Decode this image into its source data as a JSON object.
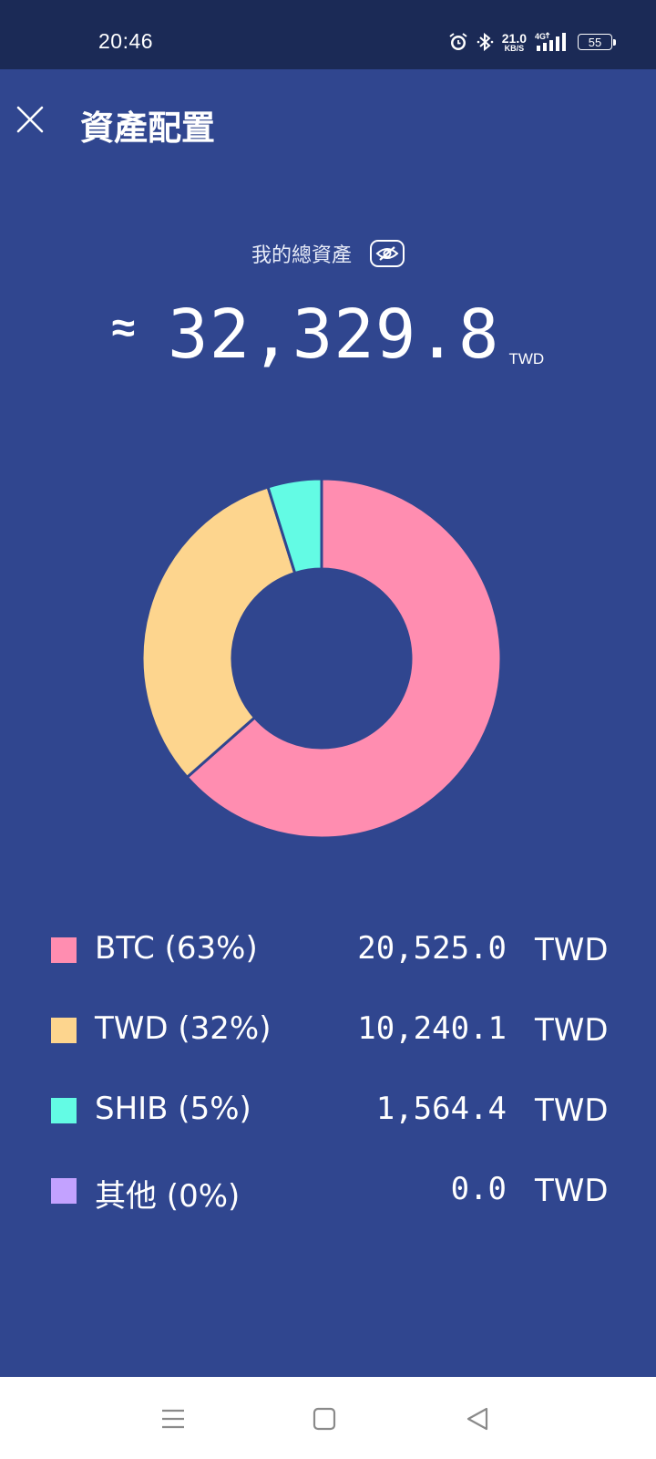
{
  "status_bar": {
    "time": "20:46",
    "net_speed_value": "21.0",
    "net_speed_unit": "KB/S",
    "network": "4G",
    "battery": "55",
    "icons": [
      "alarm-icon",
      "bluetooth-icon",
      "signal-icon",
      "battery-icon"
    ]
  },
  "header": {
    "title": "資產配置",
    "close_icon": "close-icon"
  },
  "summary": {
    "label": "我的總資產",
    "approx_symbol": "≈",
    "total_value": "32,329.8",
    "unit": "TWD",
    "visibility_icon": "eye-off-icon"
  },
  "chart_data": {
    "type": "pie",
    "style": "donut",
    "categories": [
      "BTC",
      "TWD",
      "SHIB",
      "其他"
    ],
    "values": [
      20525.0,
      10240.1,
      1564.4,
      0.0
    ],
    "percentages": [
      63,
      32,
      5,
      0
    ],
    "colors": [
      "#ff8db0",
      "#fdd58e",
      "#63fbe4",
      "#c3a2ff"
    ]
  },
  "legend": [
    {
      "label": "BTC (63%)",
      "value": "20,525.0",
      "unit": "TWD",
      "color": "#ff8db0"
    },
    {
      "label": "TWD (32%)",
      "value": "10,240.1",
      "unit": "TWD",
      "color": "#fdd58e"
    },
    {
      "label": "SHIB (5%)",
      "value": "1,564.4",
      "unit": "TWD",
      "color": "#63fbe4"
    },
    {
      "label": "其他 (0%)",
      "value": "0.0",
      "unit": "TWD",
      "color": "#c3a2ff"
    }
  ],
  "nav_bar": {
    "icons": [
      "menu-icon",
      "home-icon",
      "back-icon"
    ]
  },
  "colors": {
    "background": "#30468f",
    "status_bar": "#1b2a56",
    "nav_bar": "#ffffff"
  }
}
